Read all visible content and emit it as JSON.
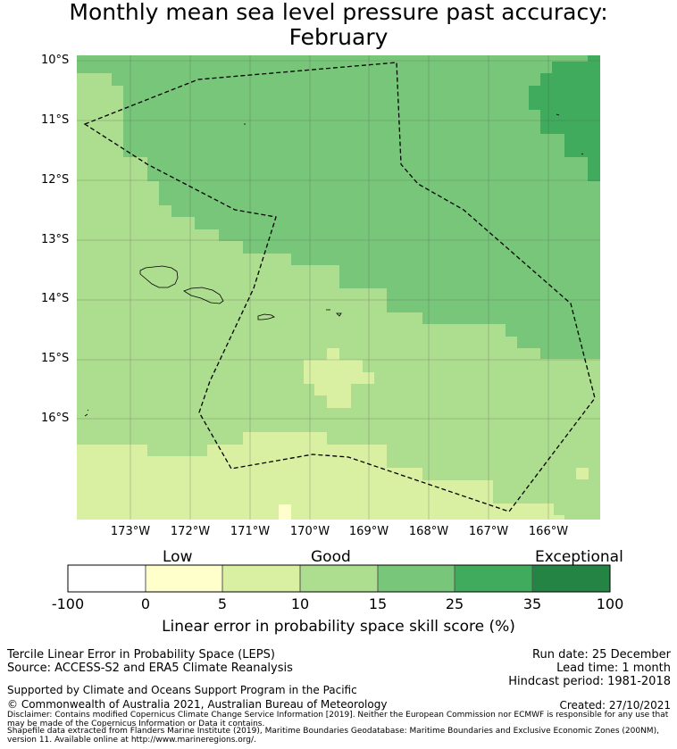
{
  "title": {
    "line1": "Monthly mean sea level pressure past accuracy:",
    "line2": "February"
  },
  "map": {
    "lat_labels": [
      "10°S",
      "11°S",
      "12°S",
      "13°S",
      "14°S",
      "15°S",
      "16°S"
    ],
    "lon_labels": [
      "173°W",
      "172°W",
      "171°W",
      "170°W",
      "169°W",
      "168°W",
      "167°W",
      "166°W"
    ],
    "colors": {
      "low": "#ffffcc",
      "good_low": "#d9f0a3",
      "good": "#addd8e",
      "good_high": "#78c679",
      "high": "#41ab5d",
      "exceptional": "#238443"
    }
  },
  "colorbar": {
    "category_labels": [
      "Low",
      "Good",
      "Exceptional"
    ],
    "ticks": [
      "-100",
      "0",
      "5",
      "10",
      "15",
      "25",
      "35",
      "100"
    ],
    "colors": [
      "#ffffff",
      "#ffffcc",
      "#d9f0a3",
      "#addd8e",
      "#78c679",
      "#41ab5d",
      "#238443"
    ],
    "title": "Linear error in probability space skill score (%)"
  },
  "footer": {
    "line1": "Tercile Linear Error in Probability Space (LEPS)",
    "line2": "Source: ACCESS-S2 and ERA5 Climate Reanalysis",
    "run_date": "Run date: 25 December",
    "lead_time": "Lead time: 1 month",
    "hindcast": "Hindcast period: 1981-2018",
    "support": "Supported by Climate and Oceans Support Program in the Pacific",
    "copyright": "© Commonwealth of Australia 2021, Australian Bureau of Meteorology",
    "created": "Created: 27/10/2021",
    "disclaimer": "Disclaimer: Contains modified Copernicus Climate Change Service Information [2019]. Neither the European Commission nor ECMWF is responsible for any use that may be made of the Copernicus Information or Data it contains.",
    "shapefile": "Shapefile data extracted from Flanders Marine Institute (2019), Maritime Boundaries Geodatabase: Maritime Boundaries and Exclusive Economic Zones (200NM), version 11. Available online at http://www.marineregions.org/."
  }
}
